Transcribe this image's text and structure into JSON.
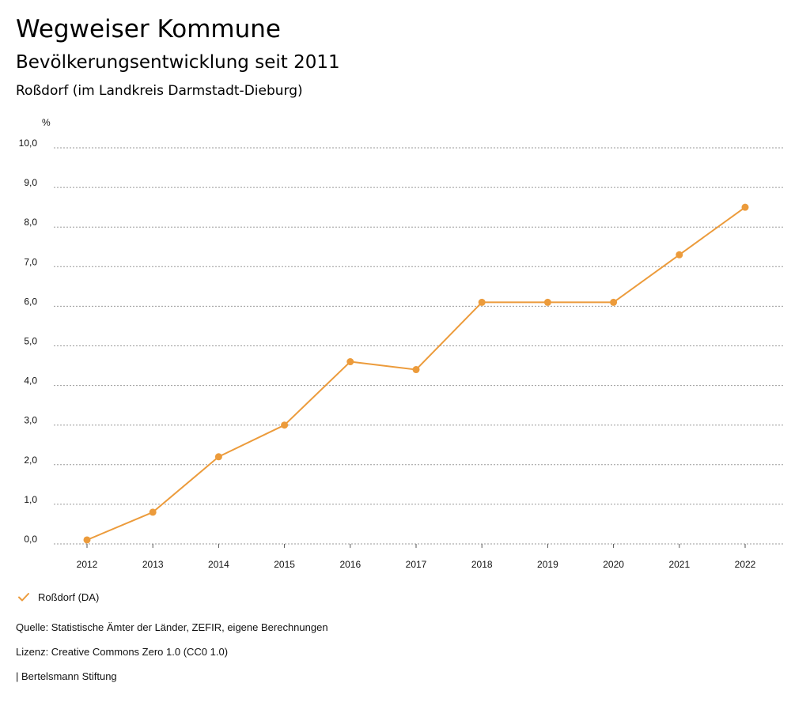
{
  "header": {
    "title": "Wegweiser Kommune",
    "subtitle": "Bevölkerungsentwicklung seit 2011",
    "region": "Roßdorf (im Landkreis Darmstadt-Dieburg)"
  },
  "colors": {
    "series": "#ec9b3b",
    "grid": "#9a9a9a",
    "text": "#111111"
  },
  "chart_data": {
    "type": "line",
    "title": "Bevölkerungsentwicklung seit 2011",
    "unit_label": "%",
    "xlabel": "",
    "ylabel": "%",
    "ylim": [
      0,
      10
    ],
    "grid": true,
    "y_ticks": [
      0,
      1,
      2,
      3,
      4,
      5,
      6,
      7,
      8,
      9,
      10
    ],
    "y_tick_labels": [
      "0,0",
      "1,0",
      "2,0",
      "3,0",
      "4,0",
      "5,0",
      "6,0",
      "7,0",
      "8,0",
      "9,0",
      "10,0"
    ],
    "categories": [
      "2012",
      "2013",
      "2014",
      "2015",
      "2016",
      "2017",
      "2018",
      "2019",
      "2020",
      "2021",
      "2022"
    ],
    "series": [
      {
        "name": "Roßdorf (DA)",
        "values": [
          0.1,
          0.8,
          2.2,
          3.0,
          4.6,
          4.4,
          6.1,
          6.1,
          6.1,
          7.3,
          8.5
        ]
      }
    ],
    "legend": "bottom-left"
  },
  "legend": {
    "label": "Roßdorf (DA)",
    "icon": "check-icon"
  },
  "footer": {
    "source": "Quelle: Statistische Ämter der Länder, ZEFIR, eigene Berechnungen",
    "license": "Lizenz: Creative Commons Zero 1.0 (CC0 1.0)",
    "publisher": "| Bertelsmann Stiftung"
  }
}
